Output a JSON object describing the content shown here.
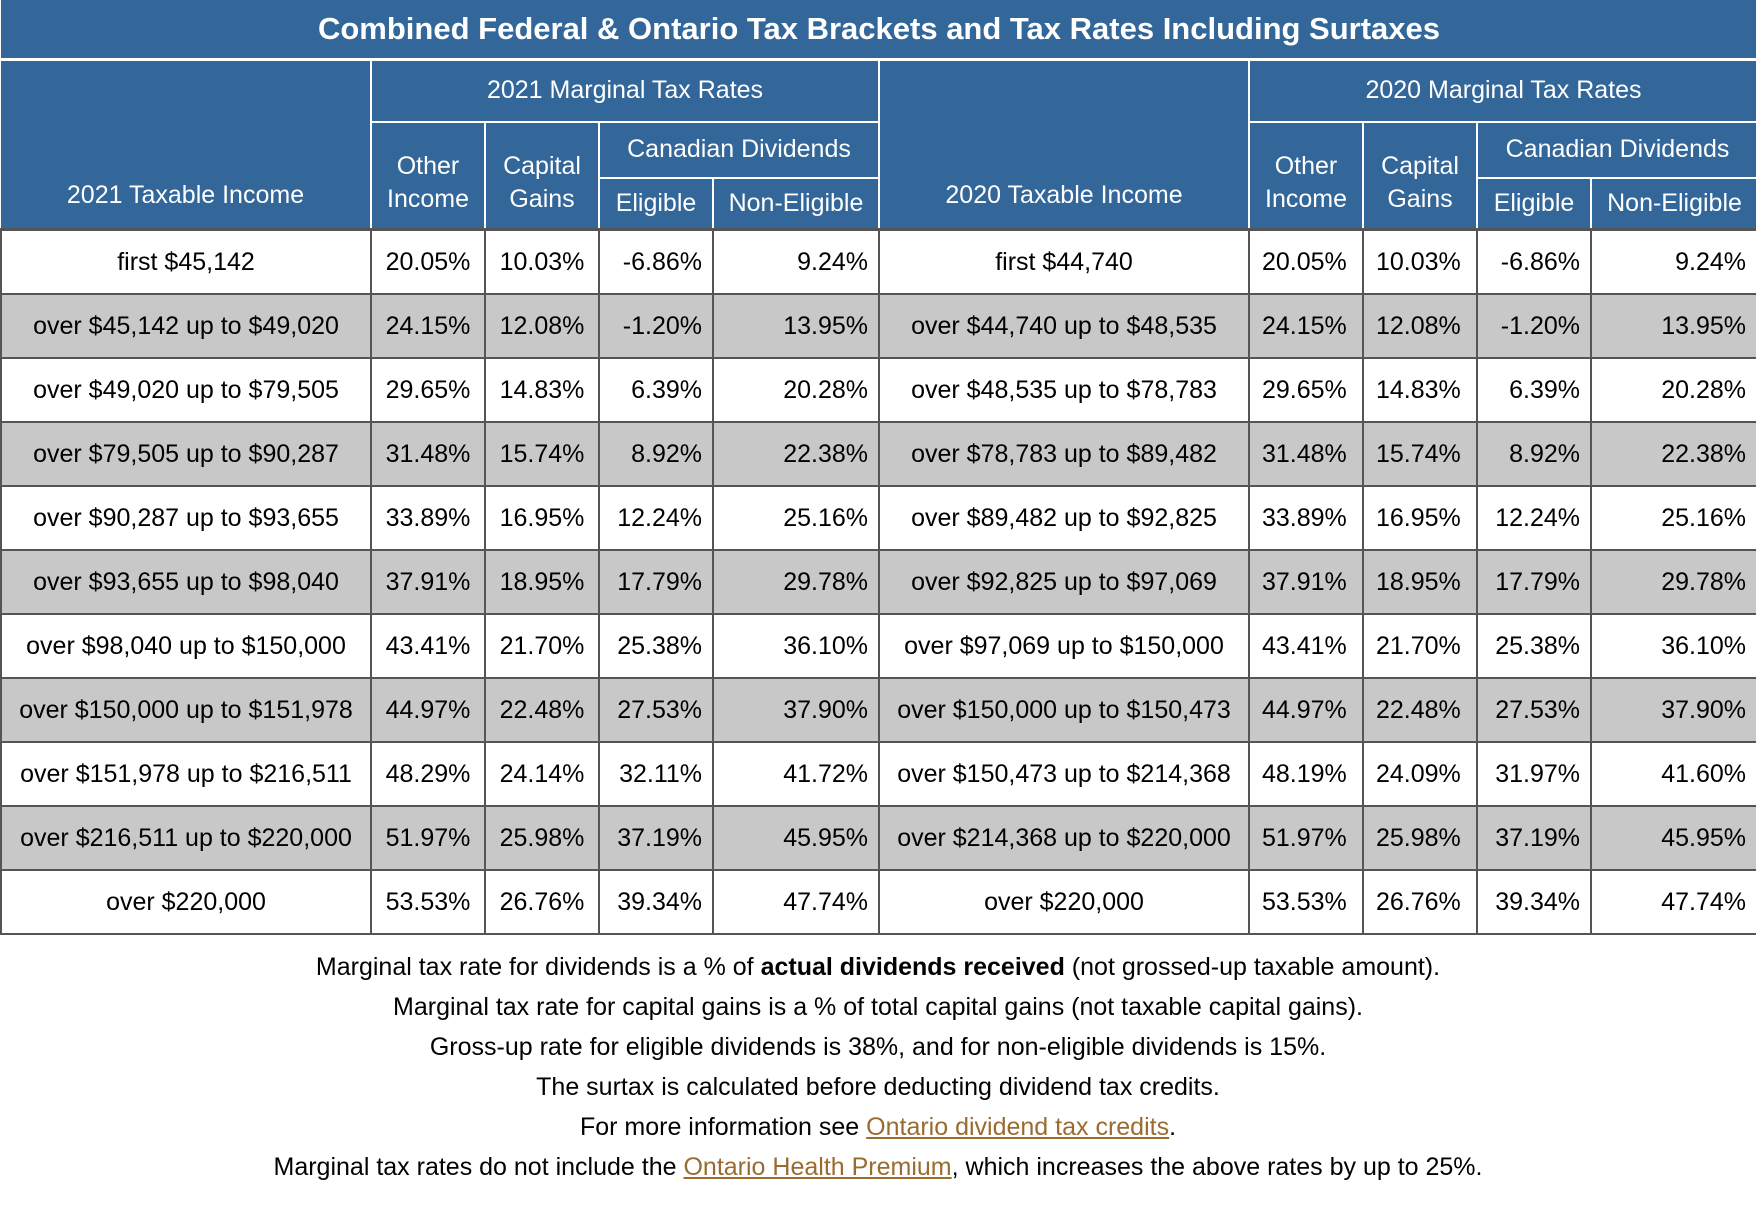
{
  "title": "Combined Federal & Ontario Tax Brackets and Tax Rates Including Surtaxes",
  "headers": {
    "income_2021": "2021 Taxable Income",
    "group_2021": "2021 Marginal Tax Rates",
    "income_2020": "2020 Taxable Income",
    "group_2020": "2020 Marginal Tax Rates",
    "other_1": "Other",
    "other_2": "Income",
    "capital_1": "Capital",
    "capital_2": "Gains",
    "dividends": "Canadian Dividends",
    "eligible": "Eligible",
    "non_eligible": "Non-Eligible"
  },
  "rows": [
    {
      "inc21": "first $45,142",
      "o21": "20.05%",
      "c21": "10.03%",
      "e21": "-6.86%",
      "n21": "9.24%",
      "inc20": "first $44,740",
      "o20": "20.05%",
      "c20": "10.03%",
      "e20": "-6.86%",
      "n20": "9.24%"
    },
    {
      "inc21": "over $45,142 up to $49,020",
      "o21": "24.15%",
      "c21": "12.08%",
      "e21": "-1.20%",
      "n21": "13.95%",
      "inc20": "over $44,740 up to $48,535",
      "o20": "24.15%",
      "c20": "12.08%",
      "e20": "-1.20%",
      "n20": "13.95%"
    },
    {
      "inc21": "over $49,020 up to $79,505",
      "o21": "29.65%",
      "c21": "14.83%",
      "e21": "6.39%",
      "n21": "20.28%",
      "inc20": "over $48,535 up to $78,783",
      "o20": "29.65%",
      "c20": "14.83%",
      "e20": "6.39%",
      "n20": "20.28%"
    },
    {
      "inc21": "over $79,505 up to $90,287",
      "o21": "31.48%",
      "c21": "15.74%",
      "e21": "8.92%",
      "n21": "22.38%",
      "inc20": "over $78,783 up to $89,482",
      "o20": "31.48%",
      "c20": "15.74%",
      "e20": "8.92%",
      "n20": "22.38%"
    },
    {
      "inc21": "over $90,287 up to $93,655",
      "o21": "33.89%",
      "c21": "16.95%",
      "e21": "12.24%",
      "n21": "25.16%",
      "inc20": "over $89,482 up to $92,825",
      "o20": "33.89%",
      "c20": "16.95%",
      "e20": "12.24%",
      "n20": "25.16%"
    },
    {
      "inc21": "over $93,655 up to $98,040",
      "o21": "37.91%",
      "c21": "18.95%",
      "e21": "17.79%",
      "n21": "29.78%",
      "inc20": "over $92,825 up to $97,069",
      "o20": "37.91%",
      "c20": "18.95%",
      "e20": "17.79%",
      "n20": "29.78%"
    },
    {
      "inc21": "over $98,040 up to $150,000",
      "o21": "43.41%",
      "c21": "21.70%",
      "e21": "25.38%",
      "n21": "36.10%",
      "inc20": "over $97,069 up to $150,000",
      "o20": "43.41%",
      "c20": "21.70%",
      "e20": "25.38%",
      "n20": "36.10%"
    },
    {
      "inc21": "over $150,000 up to $151,978",
      "o21": "44.97%",
      "c21": "22.48%",
      "e21": "27.53%",
      "n21": "37.90%",
      "inc20": "over $150,000 up to $150,473",
      "o20": "44.97%",
      "c20": "22.48%",
      "e20": "27.53%",
      "n20": "37.90%"
    },
    {
      "inc21": "over $151,978 up to $216,511",
      "o21": "48.29%",
      "c21": "24.14%",
      "e21": "32.11%",
      "n21": "41.72%",
      "inc20": "over $150,473 up to $214,368",
      "o20": "48.19%",
      "c20": "24.09%",
      "e20": "31.97%",
      "n20": "41.60%"
    },
    {
      "inc21": "over $216,511 up to $220,000",
      "o21": "51.97%",
      "c21": "25.98%",
      "e21": "37.19%",
      "n21": "45.95%",
      "inc20": "over $214,368 up to $220,000",
      "o20": "51.97%",
      "c20": "25.98%",
      "e20": "37.19%",
      "n20": "45.95%"
    },
    {
      "inc21": "over $220,000",
      "o21": "53.53%",
      "c21": "26.76%",
      "e21": "39.34%",
      "n21": "47.74%",
      "inc20": "over $220,000",
      "o20": "53.53%",
      "c20": "26.76%",
      "e20": "39.34%",
      "n20": "47.74%"
    }
  ],
  "notes": {
    "n1_pre": "Marginal tax rate for dividends is a % of ",
    "n1_bold": "actual dividends received",
    "n1_post": " (not grossed-up taxable amount).",
    "n2": "Marginal tax rate for capital gains is a % of total capital gains (not taxable capital gains).",
    "n3": "Gross-up rate for eligible dividends is 38%, and for non-eligible dividends is 15%.",
    "n4": "The surtax is calculated before deducting dividend tax credits.",
    "n5_pre": "For more information see ",
    "n5_link": "Ontario dividend tax credits",
    "n5_post": ".",
    "n6_pre": "Marginal tax rates do not include the ",
    "n6_link": "Ontario Health Premium",
    "n6_post": ", which increases the above rates by up to 25%."
  }
}
